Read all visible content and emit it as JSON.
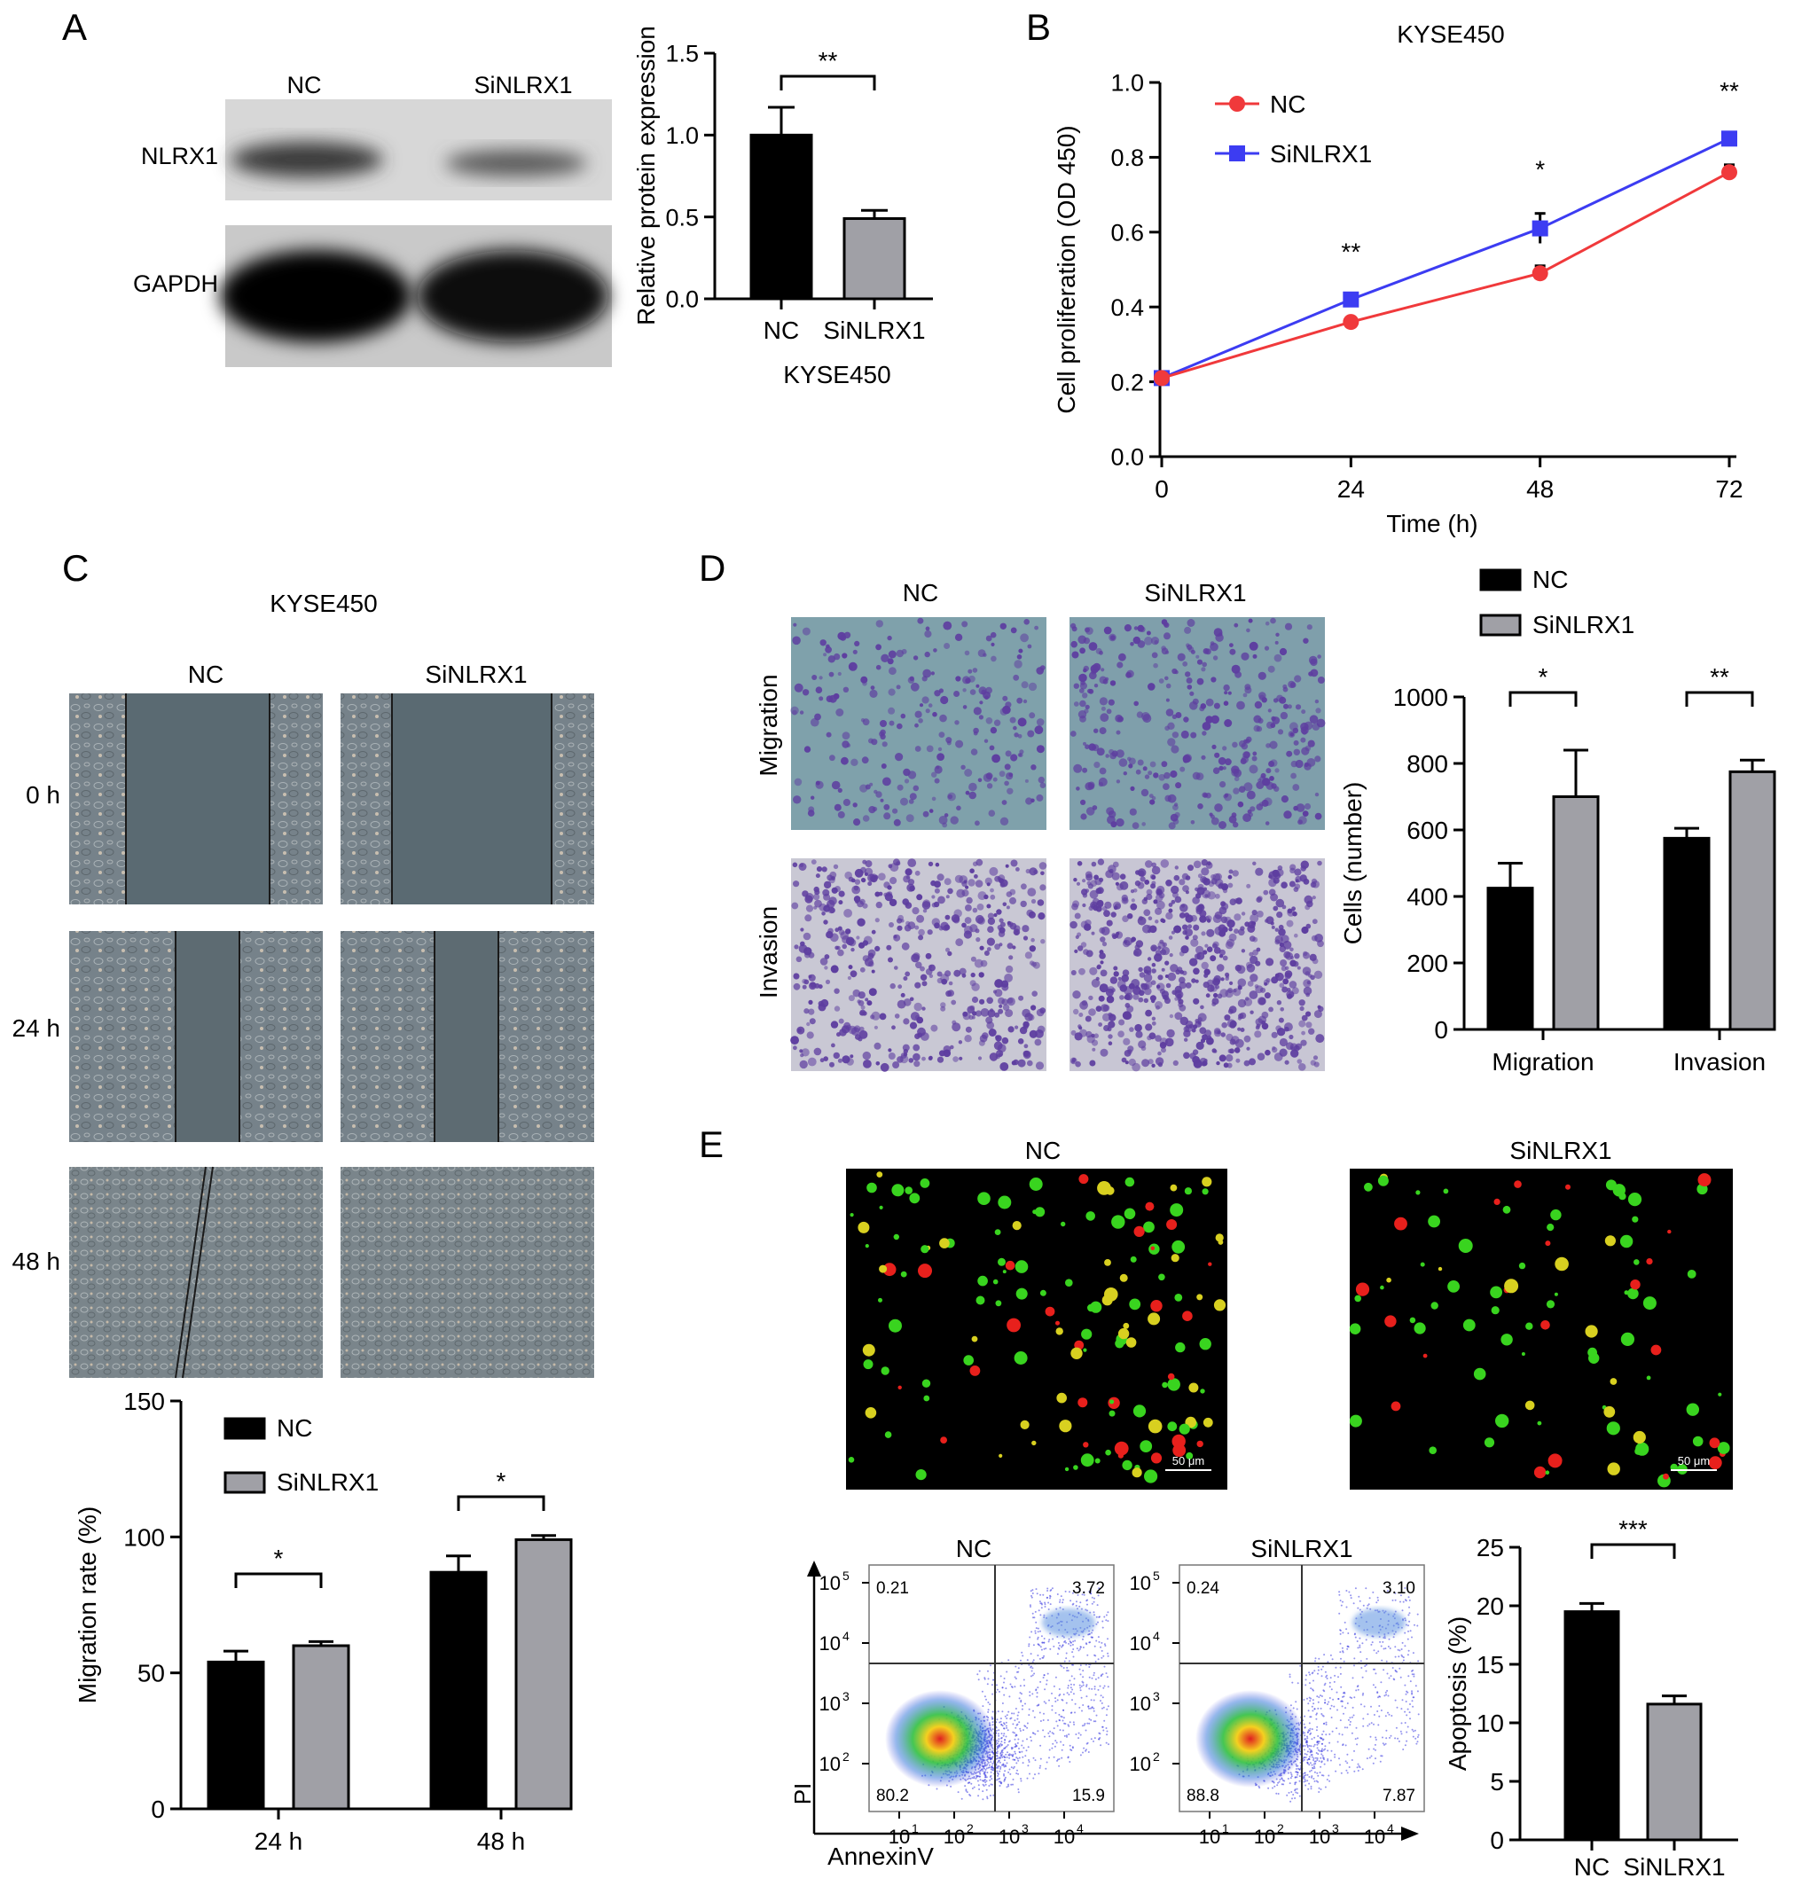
{
  "panels": {
    "A": {
      "letter": "A",
      "blot": {
        "lane_labels": [
          "NC",
          "SiNLRX1"
        ],
        "row_labels": [
          "NLRX1",
          "GAPDH"
        ]
      }
    },
    "B": {
      "letter": "B"
    },
    "C": {
      "letter": "C",
      "title": "KYSE450",
      "column_labels": [
        "NC",
        "SiNLRX1"
      ],
      "row_labels": [
        "0 h",
        "24 h",
        "48 h"
      ]
    },
    "D": {
      "letter": "D",
      "column_labels": [
        "NC",
        "SiNLRX1"
      ],
      "row_labels": [
        "Migration",
        "Invasion"
      ]
    },
    "E": {
      "letter": "E",
      "fluor_labels": [
        "NC",
        "SiNLRX1"
      ],
      "scalebar_label": "50 μm",
      "flow": {
        "titles": [
          "NC",
          "SiNLRX1"
        ],
        "quadrants": [
          {
            "ul": "0.21",
            "ur": "3.72",
            "ll": "80.2",
            "lr": "15.9"
          },
          {
            "ul": "0.24",
            "ur": "3.10",
            "ll": "88.8",
            "lr": "7.87"
          }
        ],
        "x_label": "AnnexinV",
        "y_label": "PI",
        "decade_labels": [
          "1",
          "2",
          "3",
          "4",
          "5"
        ]
      }
    }
  },
  "colors": {
    "nc_bar": "#000000",
    "si_bar": "#a0a0a6",
    "nc_line": "#f0393b",
    "si_line": "#3c3cf2",
    "wound": "#5a6a72",
    "crystal_violet": "#5e3ea0",
    "fluor_green": "#39d41f",
    "fluor_red": "#e8201c"
  },
  "chart_data": [
    {
      "id": "A-bar",
      "type": "bar",
      "categories": [
        "NC",
        "SiNLRX1"
      ],
      "values": [
        1.0,
        0.49
      ],
      "errors": [
        0.17,
        0.05
      ],
      "xlabel": "KYSE450",
      "ylabel": "Relative protein expression",
      "ylim": [
        0,
        1.5
      ],
      "yticks": [
        "0.0",
        "0.5",
        "1.0",
        "1.5"
      ],
      "significance": "**"
    },
    {
      "id": "B-line",
      "type": "line",
      "title": "KYSE450",
      "x": [
        0,
        24,
        48,
        72
      ],
      "xticks": [
        "0",
        "24",
        "48",
        "72"
      ],
      "series": [
        {
          "name": "NC",
          "values": [
            0.21,
            0.36,
            0.49,
            0.76
          ],
          "errors": [
            0.01,
            0.01,
            0.02,
            0.02
          ]
        },
        {
          "name": "SiNLRX1",
          "values": [
            0.21,
            0.42,
            0.61,
            0.85
          ],
          "errors": [
            0.01,
            0.01,
            0.04,
            0.01
          ]
        }
      ],
      "xlabel": "Time (h)",
      "ylabel": "Cell proliferation (OD 450)",
      "ylim": [
        0,
        1.0
      ],
      "yticks": [
        "0.0",
        "0.2",
        "0.4",
        "0.6",
        "0.8",
        "1.0"
      ],
      "significance": [
        "",
        "**",
        "*",
        "**"
      ],
      "legend": "top-left"
    },
    {
      "id": "C-bar",
      "type": "bar",
      "categories": [
        "24 h",
        "48 h"
      ],
      "series": [
        {
          "name": "NC",
          "values": [
            54,
            87
          ],
          "errors": [
            4,
            6
          ]
        },
        {
          "name": "SiNLRX1",
          "values": [
            60,
            99
          ],
          "errors": [
            1.5,
            1.5
          ]
        }
      ],
      "ylabel": "Migration rate (%)",
      "ylim": [
        0,
        150
      ],
      "yticks": [
        "0",
        "50",
        "100",
        "150"
      ],
      "significance": [
        "*",
        "*"
      ],
      "legend": "top-left"
    },
    {
      "id": "D-bar",
      "type": "bar",
      "categories": [
        "Migration",
        "Invasion"
      ],
      "series": [
        {
          "name": "NC",
          "values": [
            425,
            575
          ],
          "errors": [
            75,
            30
          ]
        },
        {
          "name": "SiNLRX1",
          "values": [
            700,
            775
          ],
          "errors": [
            140,
            35
          ]
        }
      ],
      "ylabel": "Cells (number)",
      "ylim": [
        0,
        1000
      ],
      "yticks": [
        "0",
        "200",
        "400",
        "600",
        "800",
        "1000"
      ],
      "significance": [
        "*",
        "**"
      ],
      "legend": "top"
    },
    {
      "id": "E-bar",
      "type": "bar",
      "categories": [
        "NC",
        "SiNLRX1"
      ],
      "values": [
        19.5,
        11.6
      ],
      "errors": [
        0.7,
        0.7
      ],
      "ylabel": "Apoptosis (%)",
      "ylim": [
        0,
        25
      ],
      "yticks": [
        "0",
        "5",
        "10",
        "15",
        "20",
        "25"
      ],
      "significance": "***"
    }
  ]
}
